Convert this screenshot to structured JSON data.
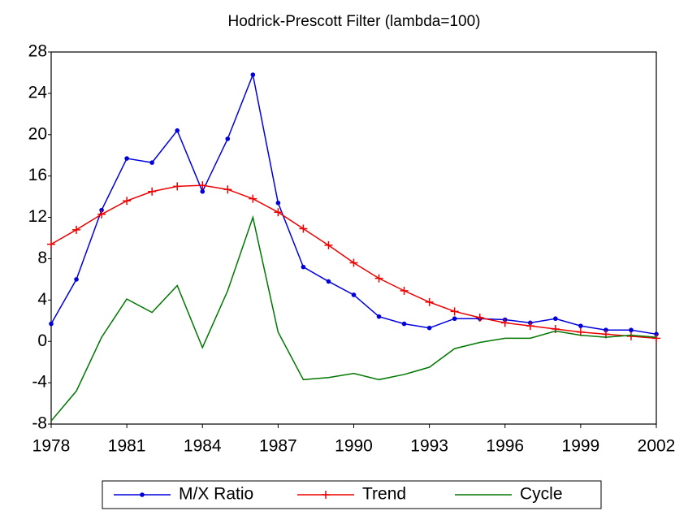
{
  "chart_data": {
    "type": "line",
    "title": "Hodrick-Prescott Filter (lambda=100)",
    "x": [
      1978,
      1979,
      1980,
      1981,
      1982,
      1983,
      1984,
      1985,
      1986,
      1987,
      1988,
      1989,
      1990,
      1991,
      1992,
      1993,
      1994,
      1995,
      1996,
      1997,
      1998,
      1999,
      2000,
      2001,
      2002
    ],
    "series": [
      {
        "name": "M/X Ratio",
        "color": "#0000dd",
        "marker": "dot",
        "values": [
          1.7,
          6.0,
          12.7,
          17.7,
          17.3,
          20.4,
          14.5,
          19.6,
          25.8,
          13.4,
          7.2,
          5.8,
          4.5,
          2.4,
          1.7,
          1.3,
          2.2,
          2.2,
          2.1,
          1.8,
          2.2,
          1.5,
          1.1,
          1.1,
          0.7
        ]
      },
      {
        "name": "Trend",
        "color": "#ee0000",
        "marker": "plus",
        "values": [
          9.4,
          10.8,
          12.3,
          13.6,
          14.5,
          15.0,
          15.1,
          14.7,
          13.8,
          12.5,
          10.9,
          9.3,
          7.6,
          6.1,
          4.9,
          3.8,
          2.9,
          2.3,
          1.8,
          1.5,
          1.2,
          0.9,
          0.7,
          0.5,
          0.3
        ]
      },
      {
        "name": "Cycle",
        "color": "#007700",
        "marker": "none",
        "values": [
          -7.7,
          -4.8,
          0.4,
          4.1,
          2.8,
          5.4,
          -0.6,
          4.9,
          12.0,
          0.9,
          -3.7,
          -3.5,
          -3.1,
          -3.7,
          -3.2,
          -2.5,
          -0.7,
          -0.1,
          0.3,
          0.3,
          1.0,
          0.6,
          0.4,
          0.6,
          0.4
        ]
      }
    ],
    "xlim": [
      1978,
      2002
    ],
    "xticks": [
      1978,
      1981,
      1984,
      1987,
      1990,
      1993,
      1996,
      1999,
      2002
    ],
    "ylim": [
      -8,
      28
    ],
    "yticks": [
      -8,
      -4,
      0,
      4,
      8,
      12,
      16,
      20,
      24,
      28
    ],
    "legend": "bottom"
  }
}
